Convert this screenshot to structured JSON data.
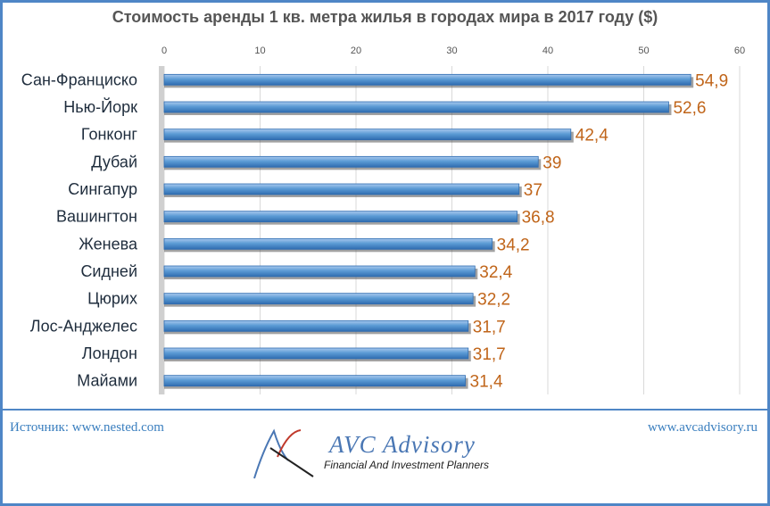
{
  "header": {
    "title": "Стоимость аренды 1 кв. метра жилья в городах мира в 2017 году ($)"
  },
  "chart_data": {
    "type": "bar",
    "orientation": "horizontal",
    "title": "Стоимость аренды 1 кв. метра жилья в городах мира в 2017 году ($)",
    "categories": [
      "Сан-Франциско",
      "Нью-Йорк",
      "Гонконг",
      "Дубай",
      "Сингапур",
      "Вашингтон",
      "Женева",
      "Сидней",
      "Цюрих",
      "Лос-Анджелес",
      "Лондон",
      "Майами"
    ],
    "values": [
      54.9,
      52.6,
      42.4,
      39,
      37,
      36.8,
      34.2,
      32.4,
      32.2,
      31.7,
      31.7,
      31.4
    ],
    "value_labels": [
      "54,9",
      "52,6",
      "42,4",
      "39",
      "37",
      "36,8",
      "34,2",
      "32,4",
      "32,2",
      "31,7",
      "31,7",
      "31,4"
    ],
    "xlim": [
      0,
      60
    ],
    "ticks": [
      0,
      10,
      20,
      30,
      40,
      50,
      60
    ],
    "xlabel": "",
    "ylabel": "",
    "axis_position": "top",
    "grid": true,
    "legend": "none",
    "bar_color": "#5b9bd5",
    "label_color": "#c0651a"
  },
  "footer": {
    "source": "Источник: www.nested.com",
    "site": "www.avcadvisory.ru",
    "logo_name": "AVC Advisory",
    "logo_tagline": "Financial And Investment Planners"
  },
  "colors": {
    "frame": "#4f86c6",
    "title": "#555555",
    "link": "#3b7fbf"
  }
}
